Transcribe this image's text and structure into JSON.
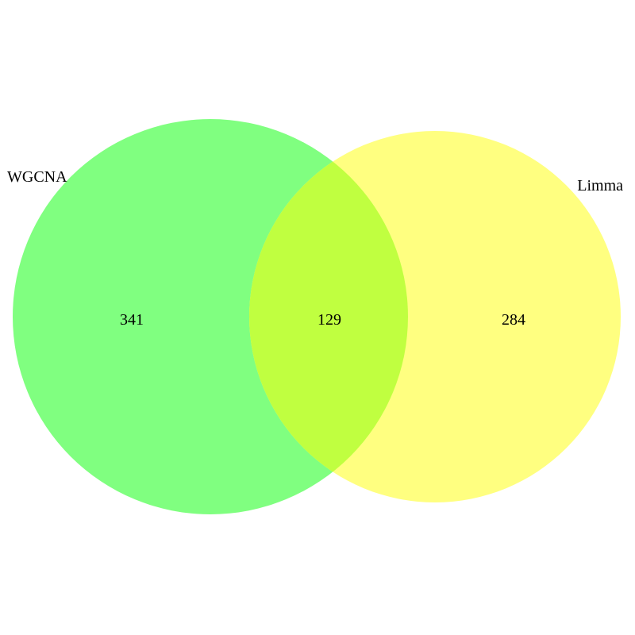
{
  "diagram": {
    "type": "venn",
    "sets": [
      {
        "key": "a",
        "label": "WGCNA",
        "count": "341",
        "color": "#80ff80"
      },
      {
        "key": "b",
        "label": "Limma",
        "count": "284",
        "color": "#ffff80"
      }
    ],
    "intersection": {
      "count": "129",
      "color": "#c0ff40"
    }
  }
}
